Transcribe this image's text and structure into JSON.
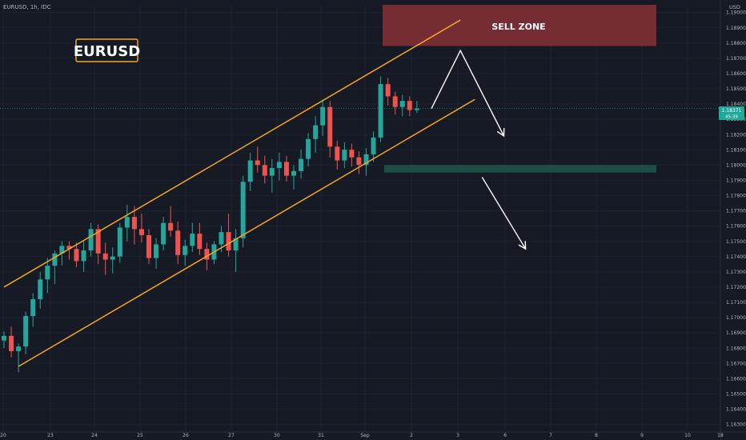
{
  "header": {
    "symbol_line": "EURUSD, 1h, IDC",
    "currency": "USD"
  },
  "watermark": {
    "label": "EURUSD"
  },
  "zones": {
    "sell_label": "SELL ZONE"
  },
  "price_tag": {
    "price": "1.18371",
    "countdown": "45:39"
  },
  "colors": {
    "background": "#161a25",
    "up": "#26a69a",
    "down": "#ef5350",
    "channel": "#f5a623",
    "sell_zone": "#7a2d33",
    "support_zone": "#1d4d45",
    "arrow": "#ffffff",
    "axis_text": "#b2b5be"
  },
  "chart_data": {
    "type": "candlestick",
    "title": "",
    "x_ticks": [
      "20",
      "23",
      "24",
      "25",
      "26",
      "27",
      "30",
      "31",
      "Sep",
      "2",
      "3",
      "6",
      "7",
      "8",
      "9",
      "10",
      "18"
    ],
    "y_ticks": [
      "1.19000",
      "1.18900",
      "1.18800",
      "1.18700",
      "1.18600",
      "1.18500",
      "1.18400",
      "1.18300",
      "1.18200",
      "1.18100",
      "1.18000",
      "1.17900",
      "1.17800",
      "1.17700",
      "1.17600",
      "1.17500",
      "1.17400",
      "1.17300",
      "1.17200",
      "1.17100",
      "1.17000",
      "1.16900",
      "1.16800",
      "1.16700",
      "1.16600",
      "1.16500",
      "1.16400",
      "1.16300"
    ],
    "ylim": [
      1.1625,
      1.1905
    ],
    "last_price": 1.18371,
    "sell_zone": [
      1.1878,
      1.1905
    ],
    "support_zone": [
      1.1795,
      1.18
    ],
    "channel_upper": [
      [
        0,
        1.172
      ],
      [
        63,
        1.1895
      ]
    ],
    "channel_lower": [
      [
        2,
        1.1668
      ],
      [
        65,
        1.1843
      ]
    ],
    "arrow_up_path": [
      [
        59,
        1.1837
      ],
      [
        63,
        1.1875
      ],
      [
        69,
        1.1819
      ]
    ],
    "arrow_down_path": [
      [
        66,
        1.1792
      ],
      [
        72,
        1.1745
      ]
    ],
    "candles": [
      {
        "o": 1.1685,
        "h": 1.1691,
        "l": 1.168,
        "c": 1.1688
      },
      {
        "o": 1.1688,
        "h": 1.1694,
        "l": 1.1674,
        "c": 1.1678
      },
      {
        "o": 1.1678,
        "h": 1.1683,
        "l": 1.1664,
        "c": 1.1681
      },
      {
        "o": 1.1681,
        "h": 1.1704,
        "l": 1.1676,
        "c": 1.1701
      },
      {
        "o": 1.1701,
        "h": 1.1716,
        "l": 1.1694,
        "c": 1.1712
      },
      {
        "o": 1.1712,
        "h": 1.173,
        "l": 1.1706,
        "c": 1.1725
      },
      {
        "o": 1.1725,
        "h": 1.1739,
        "l": 1.1716,
        "c": 1.1734
      },
      {
        "o": 1.1734,
        "h": 1.1744,
        "l": 1.1722,
        "c": 1.1742
      },
      {
        "o": 1.1742,
        "h": 1.175,
        "l": 1.1734,
        "c": 1.1747
      },
      {
        "o": 1.1747,
        "h": 1.175,
        "l": 1.1738,
        "c": 1.1745
      },
      {
        "o": 1.1745,
        "h": 1.1749,
        "l": 1.1733,
        "c": 1.1737
      },
      {
        "o": 1.1737,
        "h": 1.175,
        "l": 1.173,
        "c": 1.1744
      },
      {
        "o": 1.1744,
        "h": 1.1762,
        "l": 1.174,
        "c": 1.1758
      },
      {
        "o": 1.1758,
        "h": 1.1761,
        "l": 1.1735,
        "c": 1.1742
      },
      {
        "o": 1.1742,
        "h": 1.1749,
        "l": 1.1728,
        "c": 1.1738
      },
      {
        "o": 1.1738,
        "h": 1.1746,
        "l": 1.1729,
        "c": 1.174
      },
      {
        "o": 1.174,
        "h": 1.1762,
        "l": 1.1736,
        "c": 1.1759
      },
      {
        "o": 1.1759,
        "h": 1.1774,
        "l": 1.175,
        "c": 1.1766
      },
      {
        "o": 1.1766,
        "h": 1.1773,
        "l": 1.1748,
        "c": 1.1758
      },
      {
        "o": 1.1758,
        "h": 1.1768,
        "l": 1.1749,
        "c": 1.1754
      },
      {
        "o": 1.1754,
        "h": 1.1758,
        "l": 1.1735,
        "c": 1.1739
      },
      {
        "o": 1.1739,
        "h": 1.1752,
        "l": 1.1732,
        "c": 1.1748
      },
      {
        "o": 1.1748,
        "h": 1.1766,
        "l": 1.1744,
        "c": 1.1762
      },
      {
        "o": 1.1762,
        "h": 1.1773,
        "l": 1.1753,
        "c": 1.1757
      },
      {
        "o": 1.1757,
        "h": 1.1763,
        "l": 1.1735,
        "c": 1.1741
      },
      {
        "o": 1.1741,
        "h": 1.1751,
        "l": 1.1734,
        "c": 1.1747
      },
      {
        "o": 1.1747,
        "h": 1.1762,
        "l": 1.1743,
        "c": 1.1755
      },
      {
        "o": 1.1755,
        "h": 1.1762,
        "l": 1.1741,
        "c": 1.1745
      },
      {
        "o": 1.1745,
        "h": 1.1749,
        "l": 1.1731,
        "c": 1.1738
      },
      {
        "o": 1.1738,
        "h": 1.175,
        "l": 1.1735,
        "c": 1.1748
      },
      {
        "o": 1.1748,
        "h": 1.176,
        "l": 1.1743,
        "c": 1.1756
      },
      {
        "o": 1.1756,
        "h": 1.1768,
        "l": 1.174,
        "c": 1.1744
      },
      {
        "o": 1.1744,
        "h": 1.1758,
        "l": 1.173,
        "c": 1.1752
      },
      {
        "o": 1.1752,
        "h": 1.1793,
        "l": 1.1746,
        "c": 1.1789
      },
      {
        "o": 1.1789,
        "h": 1.1808,
        "l": 1.1783,
        "c": 1.1803
      },
      {
        "o": 1.1803,
        "h": 1.1812,
        "l": 1.1795,
        "c": 1.18
      },
      {
        "o": 1.18,
        "h": 1.1806,
        "l": 1.1788,
        "c": 1.1793
      },
      {
        "o": 1.1793,
        "h": 1.1804,
        "l": 1.1782,
        "c": 1.1798
      },
      {
        "o": 1.1798,
        "h": 1.1808,
        "l": 1.179,
        "c": 1.1802
      },
      {
        "o": 1.1802,
        "h": 1.1806,
        "l": 1.1789,
        "c": 1.1793
      },
      {
        "o": 1.1793,
        "h": 1.18,
        "l": 1.1784,
        "c": 1.1796
      },
      {
        "o": 1.1796,
        "h": 1.181,
        "l": 1.1791,
        "c": 1.1804
      },
      {
        "o": 1.1804,
        "h": 1.1821,
        "l": 1.1799,
        "c": 1.1817
      },
      {
        "o": 1.1817,
        "h": 1.1832,
        "l": 1.1808,
        "c": 1.1826
      },
      {
        "o": 1.1826,
        "h": 1.1843,
        "l": 1.1819,
        "c": 1.1838
      },
      {
        "o": 1.1838,
        "h": 1.1842,
        "l": 1.1805,
        "c": 1.1812
      },
      {
        "o": 1.1812,
        "h": 1.1816,
        "l": 1.1797,
        "c": 1.1803
      },
      {
        "o": 1.1803,
        "h": 1.1815,
        "l": 1.1798,
        "c": 1.181
      },
      {
        "o": 1.181,
        "h": 1.1814,
        "l": 1.1799,
        "c": 1.1805
      },
      {
        "o": 1.1805,
        "h": 1.1809,
        "l": 1.1794,
        "c": 1.18
      },
      {
        "o": 1.18,
        "h": 1.1811,
        "l": 1.1793,
        "c": 1.1807
      },
      {
        "o": 1.1807,
        "h": 1.1822,
        "l": 1.1802,
        "c": 1.1818
      },
      {
        "o": 1.1818,
        "h": 1.1858,
        "l": 1.1815,
        "c": 1.1853
      },
      {
        "o": 1.1853,
        "h": 1.1857,
        "l": 1.1839,
        "c": 1.1845
      },
      {
        "o": 1.1845,
        "h": 1.1848,
        "l": 1.1833,
        "c": 1.1838
      },
      {
        "o": 1.1838,
        "h": 1.1846,
        "l": 1.1832,
        "c": 1.1842
      },
      {
        "o": 1.1842,
        "h": 1.1845,
        "l": 1.1832,
        "c": 1.1836
      },
      {
        "o": 1.1836,
        "h": 1.1842,
        "l": 1.1834,
        "c": 1.1837
      }
    ]
  }
}
